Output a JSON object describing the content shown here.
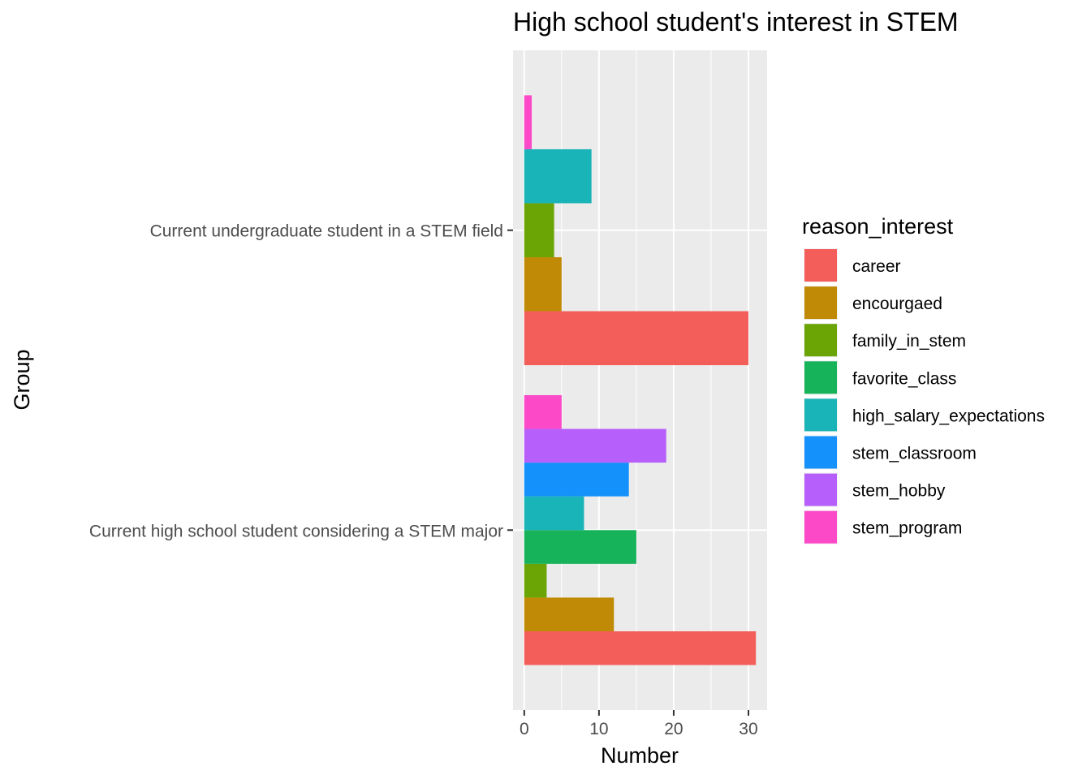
{
  "chart_data": {
    "type": "bar",
    "orientation": "horizontal",
    "title": "High school student's interest in STEM",
    "xlabel": "Number",
    "ylabel": "Group",
    "xlim": [
      -1.5,
      32.5
    ],
    "x_ticks": [
      0,
      10,
      20,
      30
    ],
    "grid": true,
    "legend_title": "reason_interest",
    "legend_position": "right",
    "legend": [
      {
        "label": "career",
        "color": "#F8766D"
      },
      {
        "label": "encourgaed",
        "color": "#C49A00"
      },
      {
        "label": "family_in_stem",
        "color": "#53B400"
      },
      {
        "label": "favorite_class",
        "color": "#00C094"
      },
      {
        "label": "high_salary_expectations",
        "color": "#00B6EB"
      },
      {
        "label": "stem_classroom",
        "color": "#A58AFF"
      },
      {
        "label": "stem_hobby",
        "color": "#C77CFF"
      },
      {
        "label": "stem_program",
        "color": "#FB61D7"
      }
    ],
    "bar_colors": {
      "career": "#F35E5A",
      "encourgaed": "#C18A06",
      "family_in_stem": "#6BA405",
      "favorite_class": "#17B35A",
      "high_salary_expectations": "#18B4B7",
      "stem_classroom": "#1491FA",
      "stem_hobby": "#B65FFA",
      "stem_program": "#FC49C8"
    },
    "categories": [
      "Current undergraduate student in a STEM field",
      "Current high school student considering a STEM major"
    ],
    "groups": [
      {
        "category": "Current undergraduate student in a STEM field",
        "bars": [
          {
            "reason": "career",
            "value": 30
          },
          {
            "reason": "encourgaed",
            "value": 5
          },
          {
            "reason": "family_in_stem",
            "value": 4
          },
          {
            "reason": "high_salary_expectations",
            "value": 9
          },
          {
            "reason": "stem_program",
            "value": 1
          }
        ]
      },
      {
        "category": "Current high school student considering a STEM major",
        "bars": [
          {
            "reason": "career",
            "value": 31
          },
          {
            "reason": "encourgaed",
            "value": 12
          },
          {
            "reason": "family_in_stem",
            "value": 3
          },
          {
            "reason": "favorite_class",
            "value": 15
          },
          {
            "reason": "high_salary_expectations",
            "value": 8
          },
          {
            "reason": "stem_classroom",
            "value": 14
          },
          {
            "reason": "stem_hobby",
            "value": 19
          },
          {
            "reason": "stem_program",
            "value": 5
          }
        ]
      }
    ]
  }
}
